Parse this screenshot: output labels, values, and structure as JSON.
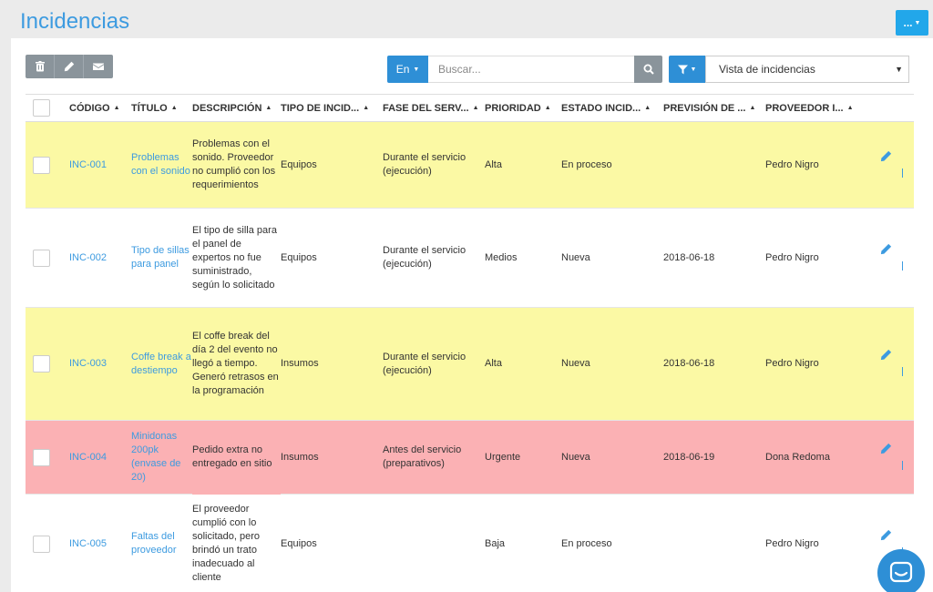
{
  "page": {
    "title": "Incidencias",
    "more_label": "..."
  },
  "toolbar": {
    "delete_icon": "trash-icon",
    "edit_icon": "pencil-icon",
    "email_icon": "envelope-icon"
  },
  "search": {
    "scope_label": "En",
    "placeholder": "Buscar...",
    "view_value": "Vista de incidencias"
  },
  "columns": [
    "CÓDIGO",
    "TÍTULO",
    "DESCRIPCIÓN",
    "TIPO DE INCID...",
    "FASE DEL SERV...",
    "PRIORIDAD",
    "ESTADO INCID...",
    "PREVISIÓN DE ...",
    "PROVEEDOR I..."
  ],
  "rows": [
    {
      "code": "INC-001",
      "title": "Problemas con el sonido",
      "description": "Problemas con el sonido. Proveedor no cumplió con los requerimientos",
      "type": "Equipos",
      "phase": "Durante el servicio (ejecución)",
      "priority": "Alta",
      "status": "En proceso",
      "forecast": "",
      "provider": "Pedro Nigro",
      "highlight": "yellow"
    },
    {
      "code": "INC-002",
      "title": "Tipo de sillas para panel",
      "description": "El tipo de silla para el panel de expertos no fue suministrado, según lo solicitado",
      "type": "Equipos",
      "phase": "Durante el servicio (ejecución)",
      "priority": "Medios",
      "status": "Nueva",
      "forecast": "2018-06-18",
      "provider": "Pedro Nigro",
      "highlight": "none"
    },
    {
      "code": "INC-003",
      "title": "Coffe break a destiempo",
      "description": "El coffe break del día 2 del evento no llegó a tiempo. Generó retrasos en la programación",
      "type": "Insumos",
      "phase": "Durante el servicio (ejecución)",
      "priority": "Alta",
      "status": "Nueva",
      "forecast": "2018-06-18",
      "provider": "Pedro Nigro",
      "highlight": "yellow"
    },
    {
      "code": "INC-004",
      "title": "Minidonas 200pk (envase de 20)",
      "description": "Pedido extra no entregado en sitio",
      "type": "Insumos",
      "phase": "Antes del servicio (preparativos)",
      "priority": "Urgente",
      "status": "Nueva",
      "forecast": "2018-06-19",
      "provider": "Dona Redoma",
      "highlight": "red"
    },
    {
      "code": "INC-005",
      "title": "Faltas del proveedor",
      "description": "El proveedor cumplió con lo solicitado, pero brindó un trato inadecuado al cliente",
      "type": "Equipos",
      "phase": "",
      "priority": "Baja",
      "status": "En proceso",
      "forecast": "",
      "provider": "Pedro Nigro",
      "highlight": "none"
    }
  ],
  "colors": {
    "accent": "#2e8fd6",
    "title": "#3d9be0",
    "yellow_row": "#fbf9a4",
    "red_row": "#fbb1b4",
    "button_gray": "#8a949b"
  }
}
